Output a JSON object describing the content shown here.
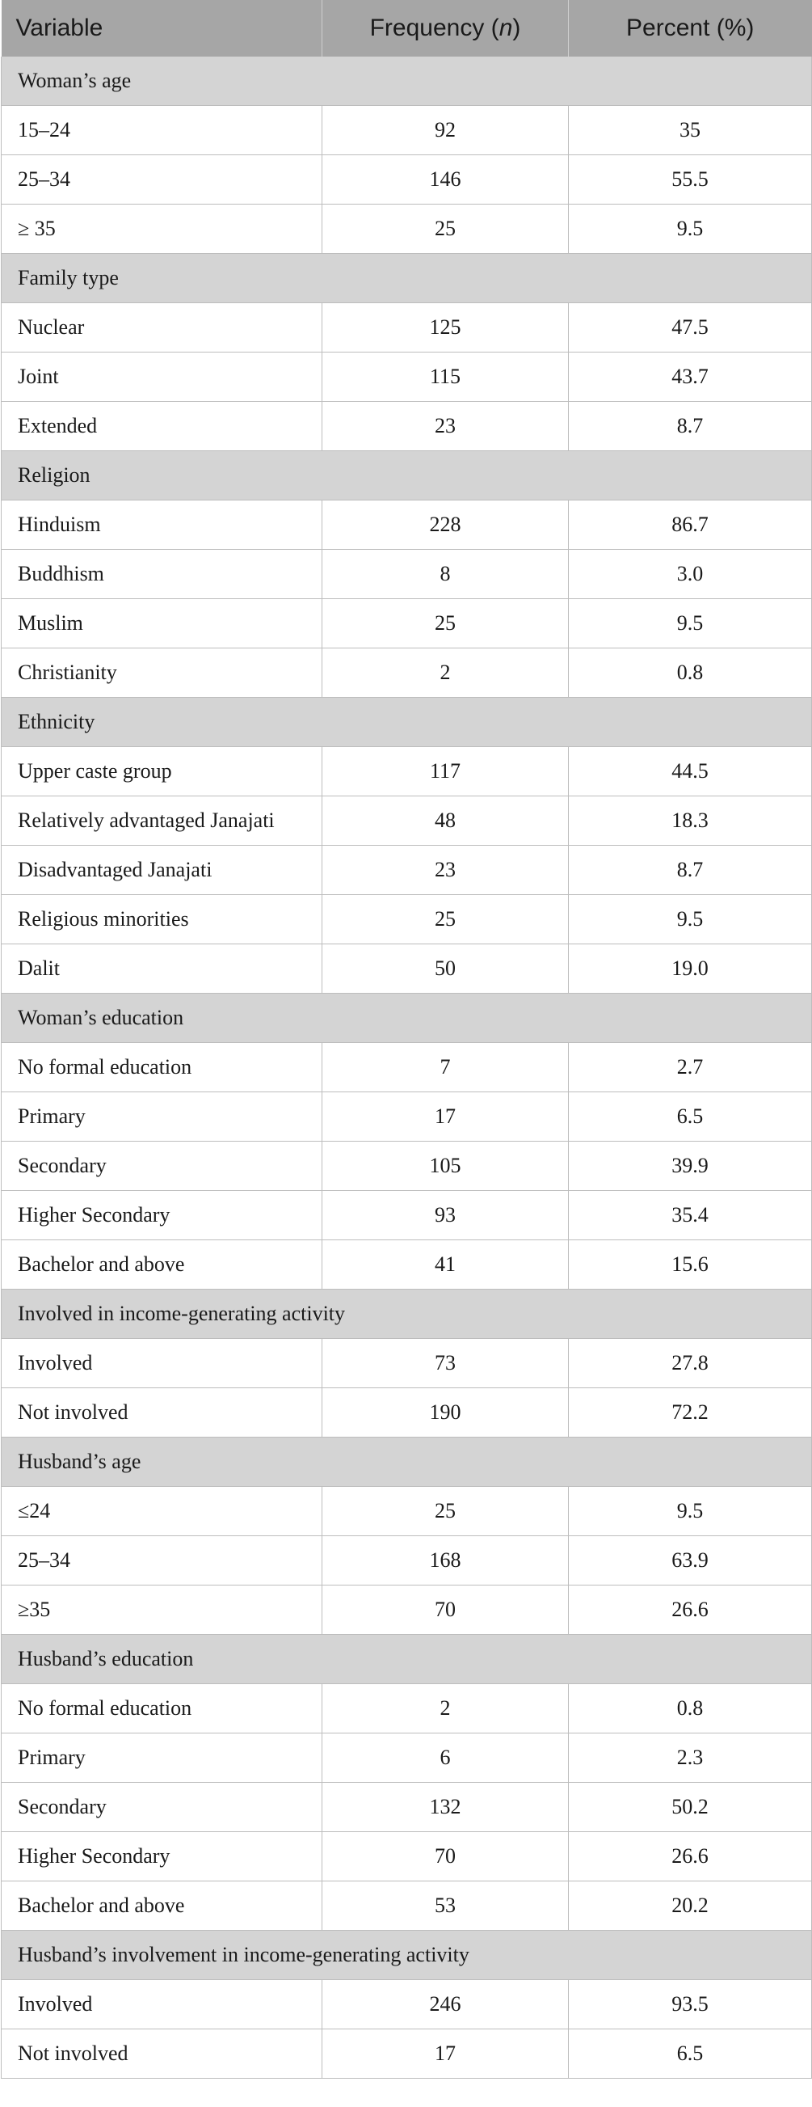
{
  "header": {
    "variable": "Variable",
    "frequency": "Frequency (",
    "frequency_italic": "n",
    "frequency_close": ")",
    "percent": "Percent (%)"
  },
  "groups": [
    {
      "label": "Woman’s age",
      "rows": [
        [
          "15–24",
          "92",
          "35"
        ],
        [
          "25–34",
          "146",
          "55.5"
        ],
        [
          "≥ 35",
          "25",
          "9.5"
        ]
      ]
    },
    {
      "label": "Family type",
      "rows": [
        [
          "Nuclear",
          "125",
          "47.5"
        ],
        [
          "Joint",
          "115",
          "43.7"
        ],
        [
          "Extended",
          "23",
          "8.7"
        ]
      ]
    },
    {
      "label": "Religion",
      "rows": [
        [
          "Hinduism",
          "228",
          "86.7"
        ],
        [
          "Buddhism",
          "8",
          "3.0"
        ],
        [
          "Muslim",
          "25",
          "9.5"
        ],
        [
          "Christianity",
          "2",
          "0.8"
        ]
      ]
    },
    {
      "label": "Ethnicity",
      "rows": [
        [
          "Upper caste group",
          "117",
          "44.5"
        ],
        [
          "Relatively advantaged Janajati",
          "48",
          "18.3"
        ],
        [
          "Disadvantaged Janajati",
          "23",
          "8.7"
        ],
        [
          "Religious minorities",
          "25",
          "9.5"
        ],
        [
          "Dalit",
          "50",
          "19.0"
        ]
      ]
    },
    {
      "label": "Woman’s education",
      "rows": [
        [
          "No formal education",
          "7",
          "2.7"
        ],
        [
          "Primary",
          "17",
          "6.5"
        ],
        [
          "Secondary",
          "105",
          "39.9"
        ],
        [
          "Higher Secondary",
          "93",
          "35.4"
        ],
        [
          "Bachelor and above",
          "41",
          "15.6"
        ]
      ]
    },
    {
      "label": "Involved in income-generating activity",
      "rows": [
        [
          "Involved",
          "73",
          "27.8"
        ],
        [
          "Not involved",
          "190",
          "72.2"
        ]
      ]
    },
    {
      "label": "Husband’s age",
      "rows": [
        [
          "≤24",
          "25",
          "9.5"
        ],
        [
          "25–34",
          "168",
          "63.9"
        ],
        [
          "≥35",
          "70",
          "26.6"
        ]
      ]
    },
    {
      "label": "Husband’s education",
      "rows": [
        [
          "No formal education",
          "2",
          "0.8"
        ],
        [
          "Primary",
          "6",
          "2.3"
        ],
        [
          "Secondary",
          "132",
          "50.2"
        ],
        [
          "Higher Secondary",
          "70",
          "26.6"
        ],
        [
          "Bachelor and above",
          "53",
          "20.2"
        ]
      ]
    },
    {
      "label": "Husband’s involvement in income-generating activity",
      "rows": [
        [
          "Involved",
          "246",
          "93.5"
        ],
        [
          "Not involved",
          "17",
          "6.5"
        ]
      ]
    }
  ]
}
